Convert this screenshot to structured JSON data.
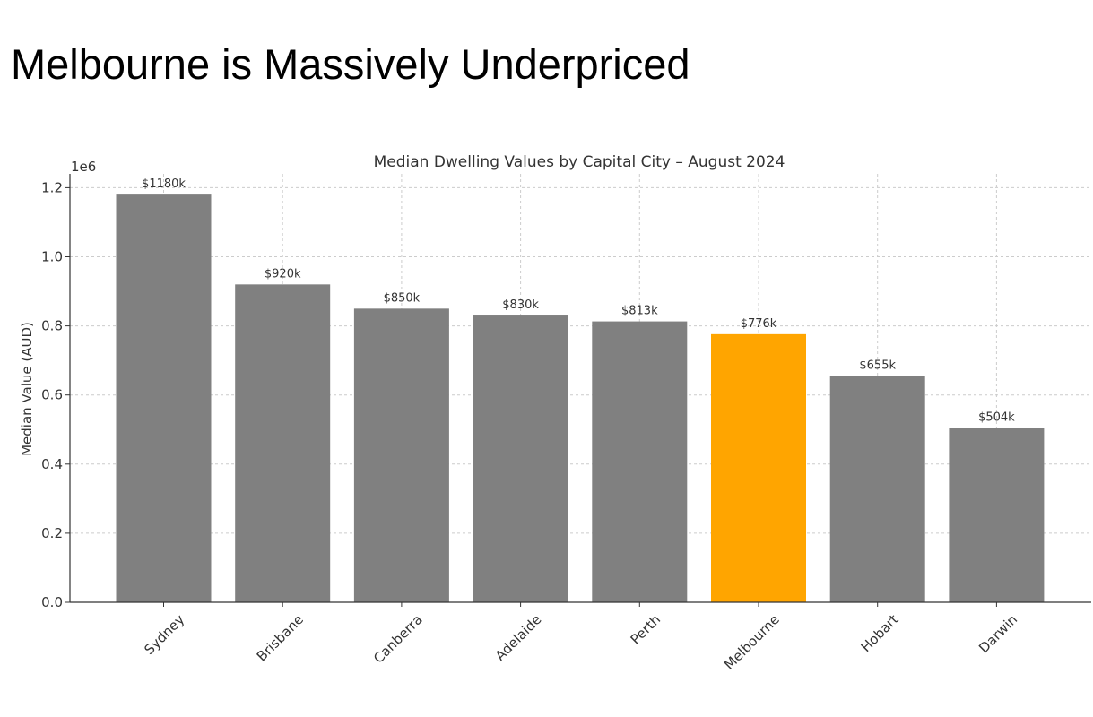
{
  "slide": {
    "title": "Melbourne is Massively Underpriced"
  },
  "chart_data": {
    "type": "bar",
    "title": "Median Dwelling Values by Capital City – August 2024",
    "xlabel": "",
    "ylabel": "Median Value (AUD)",
    "offset_label": "1e6",
    "ylim": [
      0,
      1.24
    ],
    "yticks": [
      0.0,
      0.2,
      0.4,
      0.6,
      0.8,
      1.0,
      1.2
    ],
    "ytick_labels": [
      "0.0",
      "0.2",
      "0.4",
      "0.6",
      "0.8",
      "1.0",
      "1.2"
    ],
    "grid": true,
    "categories": [
      "Sydney",
      "Brisbane",
      "Canberra",
      "Adelaide",
      "Perth",
      "Melbourne",
      "Hobart",
      "Darwin"
    ],
    "values": [
      1180000,
      920000,
      850000,
      830000,
      813000,
      776000,
      655000,
      504000
    ],
    "data_labels": [
      "$1180k",
      "$920k",
      "$850k",
      "$830k",
      "$813k",
      "$776k",
      "$655k",
      "$504k"
    ],
    "colors": [
      "#808080",
      "#808080",
      "#808080",
      "#808080",
      "#808080",
      "#FFA500",
      "#808080",
      "#808080"
    ],
    "highlight": "Melbourne"
  }
}
